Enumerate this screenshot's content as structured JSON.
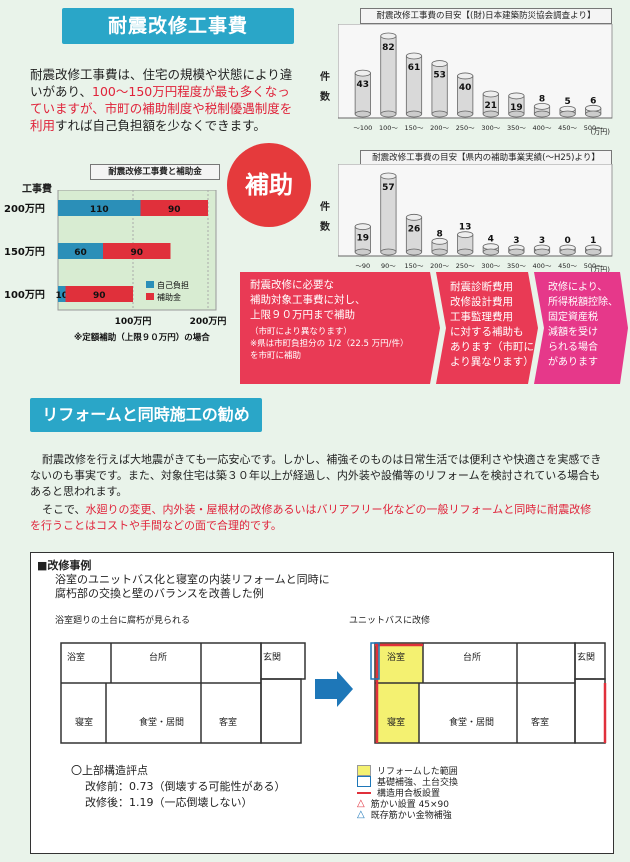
{
  "header": {
    "title": "耐震改修工事費"
  },
  "intro": {
    "p1": "耐震改修工事費は、住宅の規模や状態により違いがあり、",
    "p1_hl": "100〜150万円程度が最も多くなっていますが、市町の補助制度や税制優遇制度を利用",
    "p1_end": "すれば自己負担額を少なくできます。"
  },
  "chart_data": [
    {
      "type": "bar",
      "title": "耐震改修工事費の目安【(財)日本建築防災協会調査より】",
      "categories": [
        "〜100",
        "100〜",
        "150〜",
        "200〜",
        "250〜",
        "300〜",
        "350〜",
        "400〜",
        "450〜",
        "500〜"
      ],
      "values": [
        43,
        82,
        61,
        53,
        40,
        21,
        19,
        8,
        5,
        6
      ],
      "ylabel": "件数",
      "x_unit": "(万円)"
    },
    {
      "type": "bar",
      "title": "耐震改修工事費の目安【県内の補助事業実績(〜H25)より】",
      "categories": [
        "〜90",
        "90〜",
        "150〜",
        "200〜",
        "250〜",
        "300〜",
        "350〜",
        "400〜",
        "450〜",
        "500〜"
      ],
      "values": [
        19,
        57,
        26,
        8,
        13,
        4,
        3,
        3,
        0,
        1
      ],
      "ylabel": "件数",
      "x_unit": "(万円)"
    },
    {
      "type": "bar",
      "title": "耐震改修工事費と補助金",
      "categories": [
        "200万円",
        "150万円",
        "100万円"
      ],
      "series": [
        {
          "name": "自己負担",
          "values": [
            110,
            60,
            10
          ],
          "color": "#2b8fb8"
        },
        {
          "name": "補助金",
          "values": [
            90,
            90,
            90
          ],
          "color": "#e0303b"
        }
      ],
      "ylabel": "工事費",
      "xticks": [
        "100万円",
        "200万円"
      ],
      "note": "※定額補助（上限９０万円）の場合"
    }
  ],
  "circle": {
    "label": "補助"
  },
  "arrows": {
    "a1": [
      "耐震改修に必要な",
      "補助対象工事費に対し、",
      "上限９０万円まで補助"
    ],
    "a1_small": [
      "（市町により異なります）",
      "※県は市町負担分の 1/2（22.5 万円/件）",
      "を市町に補助"
    ],
    "a2": [
      "耐震診断費用",
      "改修設計費用",
      "工事監理費用",
      "に対する補助も",
      "あります（市町に",
      "より異なります）"
    ],
    "a3": [
      "改修により、",
      "所得税額控除、",
      "固定資産税",
      "減額を受け",
      "られる場合",
      "があります"
    ]
  },
  "section2": {
    "title": "リフォームと同時施工の勧め",
    "p1": "耐震改修を行えば大地震がきても一応安心です。しかし、補強そのものは日常生活では便利さや快適さを実感できないのも事実です。また、対象住宅は築３０年以上が経過し、内外装や設備等のリフォームを検討されている場合もあると思われます。",
    "p2_lead": "そこで、",
    "p2_red": "水廻りの変更、内外装・屋根材の改修あるいはバリアフリー化などの一般リフォームと同時に耐震改修を行うことはコストや手間などの面で合理的です。"
  },
  "example": {
    "title": "■改修事例",
    "desc1": "浴室のユニットバス化と寝室の内装リフォームと同時に",
    "desc2": "腐朽部の交換と壁のバランスを改善した例",
    "note_left": "浴室廻りの土台に腐朽が見られる",
    "note_right": "ユニットバスに改修",
    "rooms": {
      "bath": "浴室",
      "kitchen": "台所",
      "entrance": "玄関",
      "bedroom": "寝室",
      "dining": "食堂・居間",
      "guest": "客室"
    },
    "score_title": "〇上部構造評点",
    "score_before": "改修前：0.73（倒壊する可能性がある）",
    "score_after": "改修後：1.19（一応倒壊しない）",
    "legend": [
      "リフォームした範囲",
      "基礎補強、土台交換",
      "構造用合板設置",
      "筋かい設置 45×90",
      "既存筋かい金物補強"
    ]
  }
}
